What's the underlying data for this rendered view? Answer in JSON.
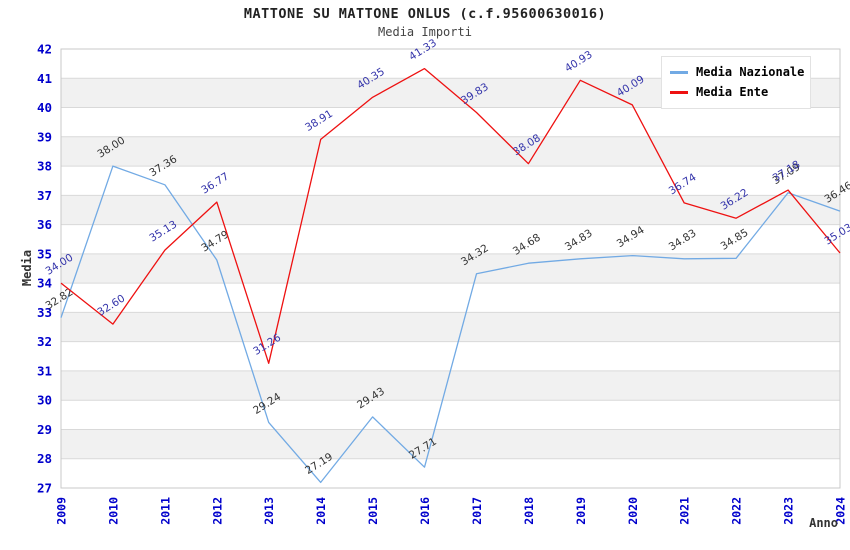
{
  "title": "MATTONE SU MATTONE ONLUS (c.f.95600630016)",
  "subtitle": "Media Importi",
  "legend": {
    "position": "top-right",
    "items": [
      {
        "label": "Media Nazionale",
        "color": "#72aae4"
      },
      {
        "label": "Media Ente",
        "color": "#ee1111"
      }
    ]
  },
  "chart_data": {
    "type": "line",
    "title": "MATTONE SU MATTONE ONLUS (c.f.95600630016)",
    "subtitle": "Media Importi",
    "xlabel": "Anno",
    "ylabel": "Media",
    "x": [
      2009,
      2010,
      2011,
      2012,
      2013,
      2014,
      2015,
      2016,
      2017,
      2018,
      2019,
      2020,
      2021,
      2022,
      2023,
      2024
    ],
    "ylim": [
      27,
      42
    ],
    "ytick_step": 1,
    "grid": "horizontal-only",
    "band_fill_between_gridlines": true,
    "legend_position": "top-right",
    "series": [
      {
        "name": "Media Nazionale",
        "color": "#72aae4",
        "label_color": "#333333",
        "values": [
          32.82,
          38.0,
          37.36,
          34.79,
          29.24,
          27.19,
          29.43,
          27.71,
          34.32,
          34.68,
          34.83,
          34.94,
          34.83,
          34.85,
          37.09,
          36.46
        ]
      },
      {
        "name": "Media Ente",
        "color": "#ee1111",
        "label_color": "#3333aa",
        "values": [
          34.0,
          32.6,
          35.13,
          36.77,
          31.26,
          38.91,
          40.35,
          41.33,
          39.83,
          38.08,
          40.93,
          40.09,
          36.74,
          36.22,
          37.18,
          35.03
        ]
      }
    ],
    "style": {
      "tick_label_color": "#0000cc",
      "gridline_color": "#d9d9d9",
      "band_color": "#f1f1f1",
      "plot_border_color": "#c9c9c9",
      "background": "#ffffff"
    }
  }
}
